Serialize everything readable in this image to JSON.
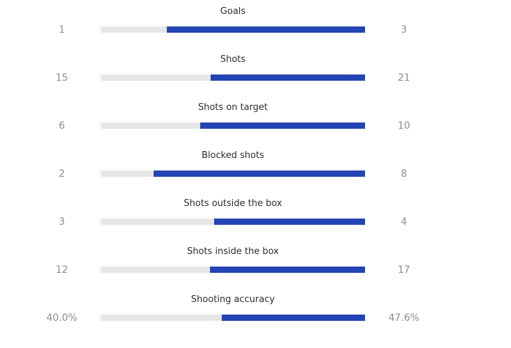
{
  "colors": {
    "home_bar": "#e6e6e6",
    "away_bar": "#2244b5",
    "label_text": "#2b2b2b",
    "value_text": "#8c8c8c"
  },
  "chart_data": {
    "type": "bar",
    "orientation": "horizontal-split",
    "categories": [
      "Goals",
      "Shots",
      "Shots on target",
      "Blocked shots",
      "Shots outside the box",
      "Shots inside the box",
      "Shooting accuracy"
    ],
    "series": [
      {
        "values": [
          1,
          15,
          6,
          2,
          3,
          12,
          40.0
        ]
      },
      {
        "values": [
          3,
          21,
          10,
          8,
          4,
          17,
          47.6
        ]
      }
    ],
    "value_labels": {
      "home": [
        "1",
        "15",
        "6",
        "2",
        "3",
        "12",
        "40.0%"
      ],
      "away": [
        "3",
        "21",
        "10",
        "8",
        "4",
        "17",
        "47.6%"
      ]
    },
    "grid": false,
    "legend": "none"
  }
}
